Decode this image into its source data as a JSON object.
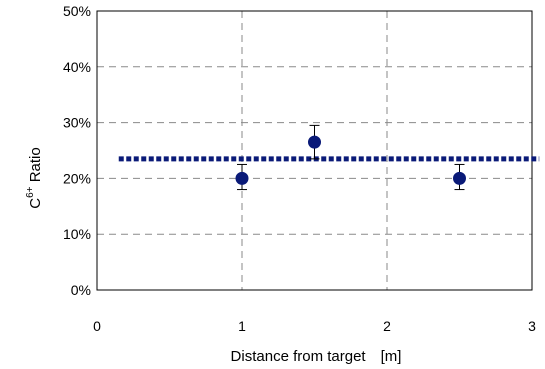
{
  "chart_data": {
    "type": "scatter",
    "xlabel": "Distance from target　[m]",
    "ylabel": {
      "base": "C",
      "superscript": "6+",
      "rest": " Ratio"
    },
    "xlim": [
      0,
      3
    ],
    "ylim": [
      0,
      0.5
    ],
    "x_ticks": [
      {
        "value": 0,
        "label": "0"
      },
      {
        "value": 1,
        "label": "1"
      },
      {
        "value": 2,
        "label": "2"
      },
      {
        "value": 3,
        "label": "3"
      }
    ],
    "y_ticks": [
      {
        "value": 0,
        "label": "0%"
      },
      {
        "value": 0.1,
        "label": "10%"
      },
      {
        "value": 0.2,
        "label": "20%"
      },
      {
        "value": 0.3,
        "label": "30%"
      },
      {
        "value": 0.4,
        "label": "40%"
      },
      {
        "value": 0.5,
        "label": "50%"
      }
    ],
    "grid": true,
    "grid_style": "dashed",
    "series": [
      {
        "points": [
          {
            "x": 1.0,
            "y": 0.2,
            "err_low": 0.18,
            "err_high": 0.225
          },
          {
            "x": 1.5,
            "y": 0.265,
            "err_low": 0.235,
            "err_high": 0.295
          },
          {
            "x": 2.5,
            "y": 0.2,
            "err_low": 0.18,
            "err_high": 0.225
          }
        ],
        "color": "#0a1a78"
      }
    ],
    "reference_line": {
      "y": 0.235,
      "x_range": [
        0.15,
        3.05
      ],
      "color": "#0a1a78",
      "style": "dotted"
    }
  }
}
